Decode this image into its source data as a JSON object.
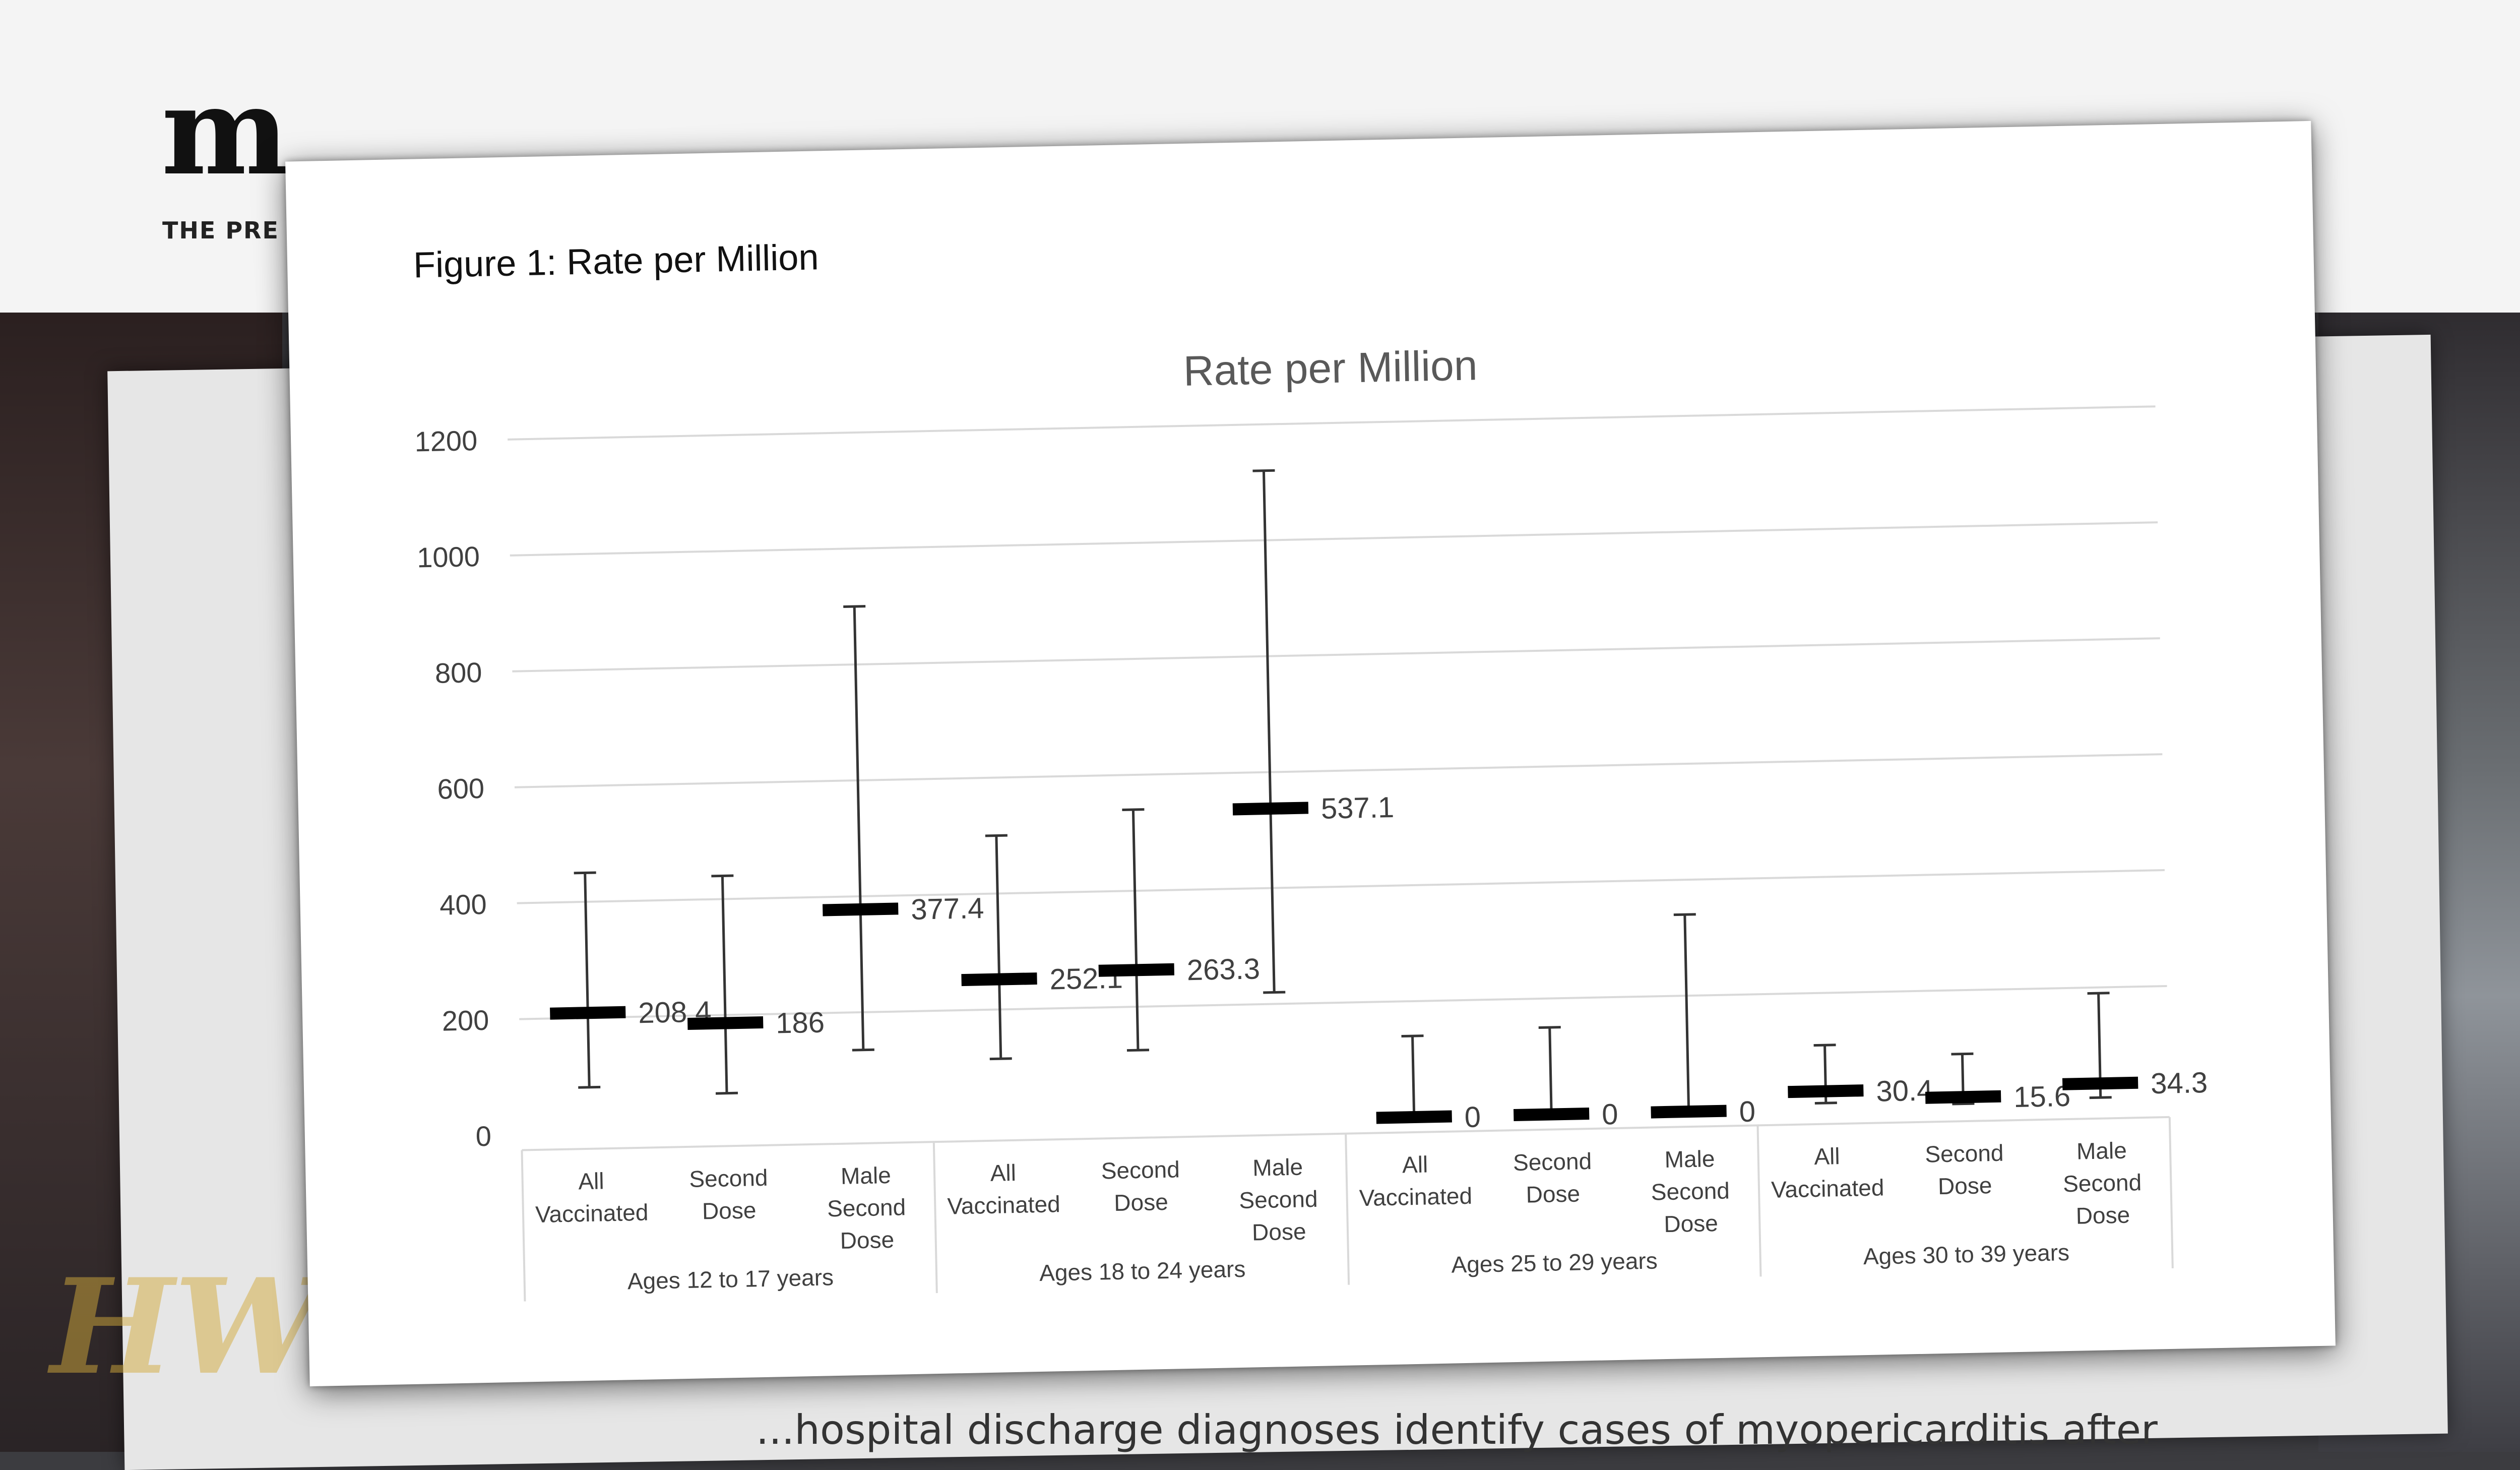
{
  "background": {
    "logo_text": "m",
    "tagline": "THE PRE",
    "body_text": "...hospital discharge diagnoses identify cases of myopericarditis after",
    "watermark": "HW"
  },
  "figure": {
    "caption": "Figure 1: Rate per Million"
  },
  "chart_data": {
    "type": "error_bar",
    "title": "Rate per Million",
    "xlabel": "",
    "ylabel": "",
    "ylim": [
      0,
      1200
    ],
    "yticks": [
      0,
      200,
      400,
      600,
      800,
      1000,
      1200
    ],
    "grid": true,
    "legend": "none",
    "groups": [
      {
        "label": "Ages 12 to 17 years",
        "categories": [
          "All Vaccinated",
          "Second Dose",
          "Male Second Dose"
        ]
      },
      {
        "label": "Ages 18 to 24 years",
        "categories": [
          "All Vaccinated",
          "Second Dose",
          "Male Second Dose"
        ]
      },
      {
        "label": "Ages 25 to 29 years",
        "categories": [
          "All Vaccinated",
          "Second Dose",
          "Male Second Dose"
        ]
      },
      {
        "label": "Ages 30 to 39 years",
        "categories": [
          "All Vaccinated",
          "Second Dose",
          "Male Second Dose"
        ]
      }
    ],
    "points": [
      {
        "label": "208.4",
        "value": 208.4,
        "low": 80,
        "high": 450
      },
      {
        "label": "186",
        "value": 186,
        "low": 65,
        "high": 440
      },
      {
        "label": "377.4",
        "value": 377.4,
        "low": 135,
        "high": 900
      },
      {
        "label": "252.1",
        "value": 252.1,
        "low": 115,
        "high": 500
      },
      {
        "label": "263.3",
        "value": 263.3,
        "low": 125,
        "high": 540
      },
      {
        "label": "537.1",
        "value": 537.1,
        "low": 220,
        "high": 1120
      },
      {
        "label": "0",
        "value": 0,
        "low": 0,
        "high": 140
      },
      {
        "label": "0",
        "value": 0,
        "low": 0,
        "high": 150
      },
      {
        "label": "0",
        "value": 0,
        "low": 0,
        "high": 340
      },
      {
        "label": "30.4",
        "value": 30.4,
        "low": 10,
        "high": 110
      },
      {
        "label": "15.6",
        "value": 15.6,
        "low": 4,
        "high": 90
      },
      {
        "label": "34.3",
        "value": 34.3,
        "low": 10,
        "high": 190
      }
    ],
    "colors": {
      "marker": "#000000",
      "whisker": "#333333",
      "grid": "#d9d9d9",
      "text": "#404040",
      "title": "#595959"
    }
  }
}
